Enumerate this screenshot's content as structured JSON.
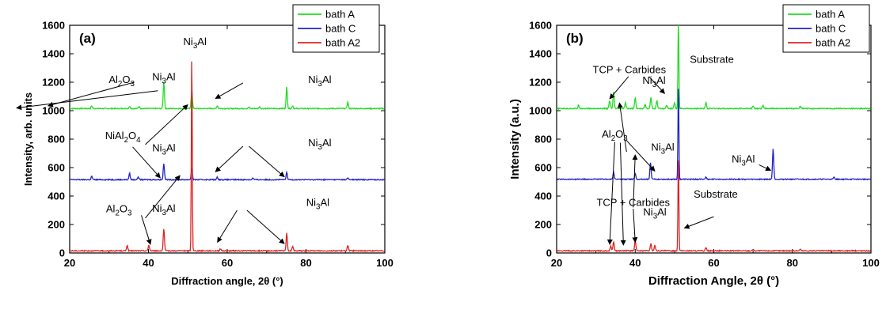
{
  "chart_data": [
    {
      "type": "line",
      "panel_label": "(a)",
      "xlabel": "Diffraction angle, 2θ (°)",
      "ylabel": "Intensity, arb. units",
      "xlim": [
        20,
        100
      ],
      "ylim": [
        0,
        1600
      ],
      "x_ticks": [
        20,
        40,
        60,
        80,
        100
      ],
      "y_ticks": [
        0,
        200,
        400,
        600,
        800,
        1000,
        1200,
        1400,
        1600
      ],
      "grid": false,
      "legend_position": "top-right",
      "series": [
        {
          "name": "bath A",
          "color": "#22dd22",
          "baseline": 1015,
          "peaks": [
            [
              25.6,
              20
            ],
            [
              35.2,
              15
            ],
            [
              37.6,
              15
            ],
            [
              43.9,
              190
            ],
            [
              51,
              130
            ],
            [
              57.5,
              20
            ],
            [
              65.5,
              10
            ],
            [
              68.2,
              12
            ],
            [
              75.1,
              150
            ],
            [
              76.6,
              20
            ],
            [
              90.6,
              45
            ]
          ]
        },
        {
          "name": "bath C",
          "color": "#2222cc",
          "baseline": 515,
          "peaks": [
            [
              25.6,
              25
            ],
            [
              35.2,
              45
            ],
            [
              37.4,
              20
            ],
            [
              43.9,
              115
            ],
            [
              51,
              80
            ],
            [
              57.5,
              18
            ],
            [
              66.5,
              12
            ],
            [
              75.1,
              50
            ],
            [
              90.6,
              12
            ]
          ]
        },
        {
          "name": "bath A2",
          "color": "#dd2222",
          "baseline": 15,
          "peaks": [
            [
              34.6,
              40
            ],
            [
              40.1,
              40
            ],
            [
              43.9,
              155
            ],
            [
              51,
              1420
            ],
            [
              58.3,
              15
            ],
            [
              75.1,
              125
            ],
            [
              76.6,
              30
            ],
            [
              90.6,
              40
            ]
          ]
        }
      ],
      "annotations": [
        {
          "text": "Ni3Al",
          "x": 51.8,
          "y": 1460
        },
        {
          "text": "Ni3Al",
          "x": 43.9,
          "y": 1215
        },
        {
          "text": "Al2O3",
          "x": 33.2,
          "y": 1195
        },
        {
          "text": "Ni3Al",
          "x": 83.5,
          "y": 1195
        },
        {
          "text": "NiAl2O4",
          "x": 33.5,
          "y": 800
        },
        {
          "text": "Ni3Al",
          "x": 43.9,
          "y": 715
        },
        {
          "text": "Ni3Al",
          "x": 83.5,
          "y": 750
        },
        {
          "text": "Al2O3",
          "x": 32.5,
          "y": 285
        },
        {
          "text": "Ni3Al",
          "x": 43.9,
          "y": 290
        },
        {
          "text": "Ni3Al",
          "x": 83,
          "y": 330
        }
      ]
    },
    {
      "type": "line",
      "panel_label": "(b)",
      "xlabel": "Diffraction Angle, 2θ (°)",
      "ylabel": "Intensity (a.u.)",
      "xlim": [
        20,
        100
      ],
      "ylim": [
        0,
        1600
      ],
      "x_ticks": [
        20,
        40,
        60,
        80,
        100
      ],
      "y_ticks": [
        0,
        200,
        400,
        600,
        800,
        1000,
        1200,
        1400,
        1600
      ],
      "grid": false,
      "legend_position": "top-right",
      "series": [
        {
          "name": "bath A",
          "color": "#22dd22",
          "baseline": 1015,
          "peaks": [
            [
              25.6,
              25
            ],
            [
              33.5,
              55
            ],
            [
              34.5,
              115
            ],
            [
              37.5,
              40
            ],
            [
              40,
              75
            ],
            [
              42.5,
              30
            ],
            [
              44,
              75
            ],
            [
              45.5,
              55
            ],
            [
              48,
              25
            ],
            [
              50,
              40
            ],
            [
              51,
              640
            ],
            [
              58,
              40
            ],
            [
              70,
              20
            ],
            [
              72.5,
              20
            ],
            [
              82,
              15
            ]
          ]
        },
        {
          "name": "bath C",
          "color": "#2222cc",
          "baseline": 518,
          "peaks": [
            [
              34.5,
              45
            ],
            [
              40,
              40
            ],
            [
              43.9,
              115
            ],
            [
              51,
              680
            ],
            [
              58,
              15
            ],
            [
              75.1,
              215
            ],
            [
              90.6,
              15
            ]
          ]
        },
        {
          "name": "bath A2",
          "color": "#dd2222",
          "baseline": 15,
          "peaks": [
            [
              33.8,
              35
            ],
            [
              34.5,
              65
            ],
            [
              40,
              75
            ],
            [
              44,
              50
            ],
            [
              45,
              40
            ],
            [
              51,
              680
            ],
            [
              58,
              25
            ],
            [
              70,
              12
            ],
            [
              82,
              12
            ]
          ]
        }
      ],
      "annotations": [
        {
          "text": "Substrate",
          "x": 59.5,
          "y": 1335
        },
        {
          "text": "TCP + Carbides",
          "x": 38.5,
          "y": 1265
        },
        {
          "text": "Ni3Al",
          "x": 44.8,
          "y": 1190
        },
        {
          "text": "Al2O3",
          "x": 34.8,
          "y": 810
        },
        {
          "text": "Ni3Al",
          "x": 47,
          "y": 720
        },
        {
          "text": "Ni3Al",
          "x": 67.5,
          "y": 635
        },
        {
          "text": "TCP + Carbides",
          "x": 39.5,
          "y": 330
        },
        {
          "text": "Substrate",
          "x": 60.5,
          "y": 390
        },
        {
          "text": "Ni3Al",
          "x": 45,
          "y": 265
        }
      ]
    }
  ]
}
